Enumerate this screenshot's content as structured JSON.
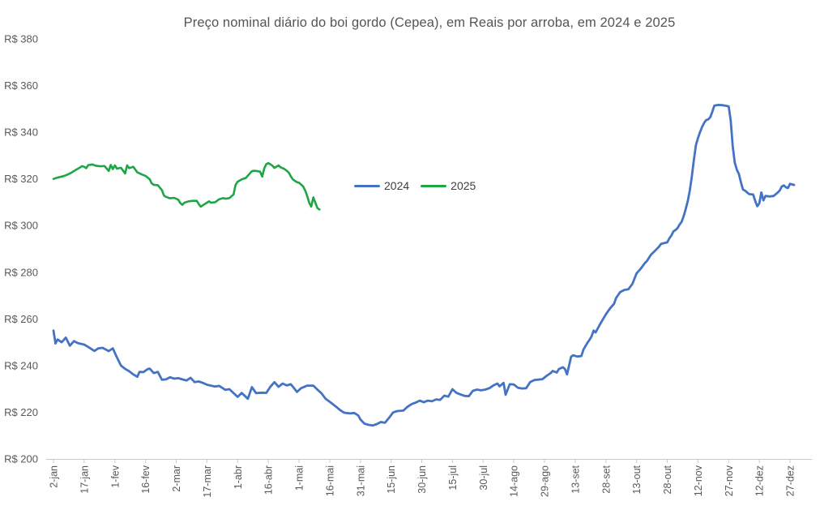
{
  "title": "Preço nominal diário do boi gordo (Cepea), em Reais por arroba, em 2024 e 2025",
  "legend": [
    {
      "label": "2024",
      "color": "#4472C4"
    },
    {
      "label": "2025",
      "color": "#1EA546"
    }
  ],
  "chart_data": {
    "type": "line",
    "title": "Preço nominal diário do boi gordo (Cepea), em Reais por arroba, em 2024 e 2025",
    "xlabel": "",
    "ylabel": "",
    "grid": false,
    "legend_position": "inside-upper-middle-left",
    "y_axis": {
      "tick_prefix": "R$ ",
      "ticks": [
        380,
        360,
        340,
        320,
        300,
        280,
        260,
        240,
        220,
        200
      ],
      "min": 200,
      "max": 380
    },
    "x_axis": {
      "unit": "day-of-year",
      "tick_interval_days": 15,
      "tick_labels": [
        "2-jan",
        "17-jan",
        "1-fev",
        "16-fev",
        "2-mar",
        "17-mar",
        "1-abr",
        "16-abr",
        "1-mai",
        "16-mai",
        "31-mai",
        "15-jun",
        "30-jun",
        "15-jul",
        "30-jul",
        "14-ago",
        "29-ago",
        "13-set",
        "28-set",
        "13-out",
        "28-out",
        "12-nov",
        "27-nov",
        "12-dez",
        "27-dez"
      ],
      "tick_days": [
        2,
        17,
        32,
        47,
        62,
        77,
        92,
        107,
        122,
        137,
        152,
        167,
        182,
        197,
        212,
        227,
        242,
        257,
        272,
        287,
        302,
        317,
        332,
        347,
        362
      ]
    },
    "series": [
      {
        "name": "2024",
        "color": "#4472C4",
        "stroke_width": 2.8,
        "points": [
          [
            2,
            255
          ],
          [
            3,
            249.5
          ],
          [
            4,
            251.2
          ],
          [
            6,
            250
          ],
          [
            8,
            252
          ],
          [
            10,
            248.5
          ],
          [
            12,
            250.5
          ],
          [
            14,
            249.6
          ],
          [
            17,
            249
          ],
          [
            19,
            248
          ],
          [
            22,
            246.3
          ],
          [
            24,
            247.4
          ],
          [
            26,
            247.6
          ],
          [
            29,
            246.2
          ],
          [
            31,
            247.4
          ],
          [
            33,
            243.5
          ],
          [
            35,
            240
          ],
          [
            37,
            238.6
          ],
          [
            39,
            237.6
          ],
          [
            41,
            236.2
          ],
          [
            43,
            235.2
          ],
          [
            44,
            237.3
          ],
          [
            46,
            237.2
          ],
          [
            48,
            238.5
          ],
          [
            49,
            238.7
          ],
          [
            51,
            236.8
          ],
          [
            53,
            237.3
          ],
          [
            55,
            233.9
          ],
          [
            57,
            234.1
          ],
          [
            59,
            235
          ],
          [
            61,
            234.4
          ],
          [
            63,
            234.6
          ],
          [
            65,
            234.1
          ],
          [
            67,
            233.6
          ],
          [
            69,
            234.8
          ],
          [
            71,
            232.9
          ],
          [
            73,
            233.2
          ],
          [
            75,
            232.6
          ],
          [
            77,
            231.8
          ],
          [
            79,
            231.4
          ],
          [
            81,
            231
          ],
          [
            83,
            231.3
          ],
          [
            86,
            229.6
          ],
          [
            88,
            229.9
          ],
          [
            92,
            226.6
          ],
          [
            94,
            228.3
          ],
          [
            97,
            225.8
          ],
          [
            99,
            230.8
          ],
          [
            101,
            228.2
          ],
          [
            104,
            228.4
          ],
          [
            106,
            228.3
          ],
          [
            108,
            230.9
          ],
          [
            110,
            232.9
          ],
          [
            112,
            230.9
          ],
          [
            114,
            232.3
          ],
          [
            116,
            231.5
          ],
          [
            118,
            232
          ],
          [
            120,
            229.9
          ],
          [
            121,
            228.7
          ],
          [
            123,
            230.3
          ],
          [
            126,
            231.4
          ],
          [
            129,
            231.4
          ],
          [
            131,
            229.7
          ],
          [
            133,
            228.1
          ],
          [
            135,
            225.8
          ],
          [
            137,
            224.5
          ],
          [
            140,
            222.5
          ],
          [
            142,
            221
          ],
          [
            144,
            219.8
          ],
          [
            147,
            219.5
          ],
          [
            149,
            219.7
          ],
          [
            151,
            218.6
          ],
          [
            152,
            216.9
          ],
          [
            154,
            215.1
          ],
          [
            156,
            214.6
          ],
          [
            158,
            214.3
          ],
          [
            160,
            214.9
          ],
          [
            162,
            215.8
          ],
          [
            164,
            215.5
          ],
          [
            166,
            217.6
          ],
          [
            168,
            219.9
          ],
          [
            170,
            220.5
          ],
          [
            173,
            220.7
          ],
          [
            175,
            222.3
          ],
          [
            177,
            223.5
          ],
          [
            179,
            224.1
          ],
          [
            181,
            225
          ],
          [
            183,
            224.3
          ],
          [
            185,
            225
          ],
          [
            187,
            224.7
          ],
          [
            189,
            225.5
          ],
          [
            191,
            225.3
          ],
          [
            193,
            227.1
          ],
          [
            195,
            226.7
          ],
          [
            197,
            229.9
          ],
          [
            199,
            228.3
          ],
          [
            201,
            227.6
          ],
          [
            203,
            227
          ],
          [
            205,
            226.9
          ],
          [
            207,
            229.2
          ],
          [
            209,
            229.7
          ],
          [
            211,
            229.4
          ],
          [
            213,
            229.7
          ],
          [
            215,
            230.3
          ],
          [
            217,
            231.5
          ],
          [
            219,
            232.3
          ],
          [
            220,
            231.1
          ],
          [
            222,
            232.6
          ],
          [
            223,
            227.5
          ],
          [
            225,
            232
          ],
          [
            227,
            231.9
          ],
          [
            229,
            230.5
          ],
          [
            231,
            230.2
          ],
          [
            233,
            230.3
          ],
          [
            235,
            232.9
          ],
          [
            237,
            233.8
          ],
          [
            239,
            234
          ],
          [
            241,
            234.2
          ],
          [
            243,
            235.6
          ],
          [
            245,
            236.8
          ],
          [
            246,
            237.7
          ],
          [
            248,
            237
          ],
          [
            249,
            238.5
          ],
          [
            251,
            239.3
          ],
          [
            252,
            238.5
          ],
          [
            253,
            236.2
          ],
          [
            255,
            243.8
          ],
          [
            256,
            244.4
          ],
          [
            258,
            243.9
          ],
          [
            260,
            244.1
          ],
          [
            261,
            246.8
          ],
          [
            263,
            249.8
          ],
          [
            264,
            251
          ],
          [
            265,
            252.5
          ],
          [
            266,
            255
          ],
          [
            267,
            254.2
          ],
          [
            269,
            257.5
          ],
          [
            271,
            260.5
          ],
          [
            272,
            262
          ],
          [
            274,
            264.5
          ],
          [
            276,
            266.5
          ],
          [
            277,
            269
          ],
          [
            279,
            271.5
          ],
          [
            281,
            272.4
          ],
          [
            283,
            272.7
          ],
          [
            285,
            275.1
          ],
          [
            287,
            279.5
          ],
          [
            289,
            281.5
          ],
          [
            291,
            283.9
          ],
          [
            292,
            284.8
          ],
          [
            294,
            287.5
          ],
          [
            296,
            289.2
          ],
          [
            298,
            291
          ],
          [
            299,
            292.2
          ],
          [
            300,
            292.4
          ],
          [
            302,
            292.8
          ],
          [
            303,
            294.5
          ],
          [
            304,
            295.7
          ],
          [
            305,
            297.5
          ],
          [
            306,
            298.1
          ],
          [
            307,
            298.9
          ],
          [
            308,
            300.4
          ],
          [
            309,
            301.6
          ],
          [
            310,
            304
          ],
          [
            311,
            307
          ],
          [
            312,
            310.5
          ],
          [
            313,
            315
          ],
          [
            314,
            321
          ],
          [
            315,
            328
          ],
          [
            316,
            334.5
          ],
          [
            317,
            337.5
          ],
          [
            318,
            340
          ],
          [
            319,
            342.2
          ],
          [
            320,
            344
          ],
          [
            321,
            345.2
          ],
          [
            322,
            345.5
          ],
          [
            323,
            346.4
          ],
          [
            324,
            348.7
          ],
          [
            325,
            351.4
          ],
          [
            327,
            351.7
          ],
          [
            329,
            351.6
          ],
          [
            331,
            351.3
          ],
          [
            332,
            351.1
          ],
          [
            333,
            345
          ],
          [
            334,
            334
          ],
          [
            335,
            327
          ],
          [
            336,
            323.9
          ],
          [
            337,
            322.1
          ],
          [
            338,
            318.6
          ],
          [
            339,
            315.5
          ],
          [
            340,
            315
          ],
          [
            342,
            313.5
          ],
          [
            344,
            313.3
          ],
          [
            345,
            310.5
          ],
          [
            346,
            308.3
          ],
          [
            347,
            309.5
          ],
          [
            348,
            314.2
          ],
          [
            349,
            310.8
          ],
          [
            350,
            312.7
          ],
          [
            352,
            312.5
          ],
          [
            354,
            312.7
          ],
          [
            356,
            314.2
          ],
          [
            357,
            315.1
          ],
          [
            358,
            316.8
          ],
          [
            359,
            317.2
          ],
          [
            360,
            316.4
          ],
          [
            361,
            316.1
          ],
          [
            362,
            317.9
          ],
          [
            364,
            317.4
          ]
        ]
      },
      {
        "name": "2025",
        "color": "#1EA546",
        "stroke_width": 2.6,
        "points": [
          [
            2,
            320
          ],
          [
            3,
            320.3
          ],
          [
            5,
            320.8
          ],
          [
            7,
            321.2
          ],
          [
            9,
            321.9
          ],
          [
            11,
            322.8
          ],
          [
            13,
            323.9
          ],
          [
            15,
            324.9
          ],
          [
            16,
            325.5
          ],
          [
            17,
            325.2
          ],
          [
            18,
            324.6
          ],
          [
            19,
            325.9
          ],
          [
            21,
            326.2
          ],
          [
            23,
            325.6
          ],
          [
            25,
            325.4
          ],
          [
            27,
            325.5
          ],
          [
            29,
            323.4
          ],
          [
            30,
            326
          ],
          [
            31,
            324.2
          ],
          [
            32,
            325.8
          ],
          [
            33,
            324.4
          ],
          [
            35,
            324.8
          ],
          [
            37,
            322.3
          ],
          [
            38,
            325.8
          ],
          [
            39,
            324.6
          ],
          [
            41,
            325.2
          ],
          [
            43,
            322.8
          ],
          [
            45,
            322
          ],
          [
            47,
            321.3
          ],
          [
            49,
            319.9
          ],
          [
            50,
            318.1
          ],
          [
            51,
            317.5
          ],
          [
            53,
            317.3
          ],
          [
            55,
            315.2
          ],
          [
            56,
            312.9
          ],
          [
            57,
            312.3
          ],
          [
            59,
            311.7
          ],
          [
            61,
            311.9
          ],
          [
            63,
            311.1
          ],
          [
            64,
            309.6
          ],
          [
            65,
            308.9
          ],
          [
            66,
            309.8
          ],
          [
            68,
            310.4
          ],
          [
            70,
            310.6
          ],
          [
            72,
            310.6
          ],
          [
            73,
            309.2
          ],
          [
            74,
            308.1
          ],
          [
            75,
            308.7
          ],
          [
            77,
            309.8
          ],
          [
            78,
            310.4
          ],
          [
            79,
            309.8
          ],
          [
            81,
            310
          ],
          [
            83,
            311.3
          ],
          [
            85,
            311.8
          ],
          [
            86,
            311.5
          ],
          [
            88,
            311.8
          ],
          [
            90,
            313.3
          ],
          [
            91,
            317.4
          ],
          [
            92,
            318.8
          ],
          [
            94,
            319.8
          ],
          [
            96,
            320.4
          ],
          [
            98,
            322.4
          ],
          [
            99,
            323.3
          ],
          [
            100,
            323.5
          ],
          [
            102,
            323.3
          ],
          [
            103,
            323.1
          ],
          [
            104,
            321
          ],
          [
            105,
            324.5
          ],
          [
            106,
            326.3
          ],
          [
            107,
            326.8
          ],
          [
            109,
            325.7
          ],
          [
            110,
            324.7
          ],
          [
            112,
            325.8
          ],
          [
            113,
            325
          ],
          [
            115,
            324.2
          ],
          [
            116,
            323.5
          ],
          [
            117,
            322.7
          ],
          [
            118,
            321.1
          ],
          [
            119,
            319.8
          ],
          [
            120,
            319.2
          ],
          [
            121,
            318.6
          ],
          [
            122,
            318.4
          ],
          [
            124,
            316.8
          ],
          [
            125,
            315.1
          ],
          [
            126,
            312.7
          ],
          [
            127,
            309.8
          ],
          [
            128,
            308.1
          ],
          [
            129,
            312.1
          ],
          [
            130,
            309.8
          ],
          [
            131,
            307.5
          ],
          [
            132,
            306.9
          ]
        ]
      }
    ],
    "plot_geometry": {
      "x_first_tick": 66,
      "x_last_tick": 975,
      "y_top": 48,
      "y_bottom": 566
    }
  }
}
